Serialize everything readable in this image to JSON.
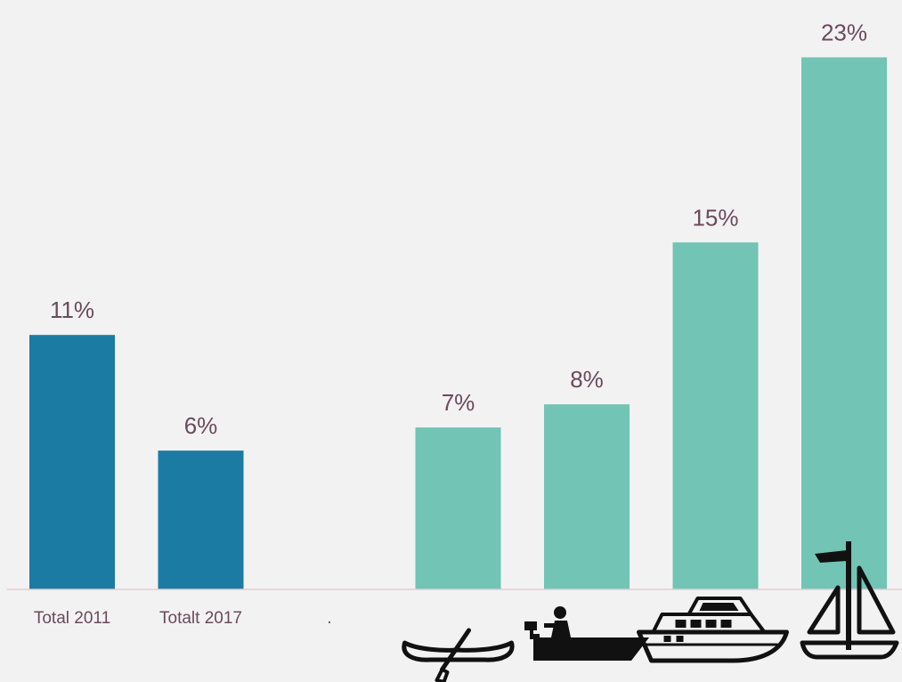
{
  "chart_data": {
    "type": "bar",
    "categories": [
      "Total 2011",
      "Totalt 2017",
      ".",
      "canoe",
      "small motorboat",
      "motor cruiser",
      "sailboat"
    ],
    "category_display": [
      "Total 2011",
      "Totalt 2017",
      ".",
      "",
      "",
      "",
      ""
    ],
    "category_icons": [
      "",
      "",
      "",
      "canoe-icon",
      "small-motorboat-icon",
      "motor-cruiser-icon",
      "sailboat-icon"
    ],
    "values": [
      11,
      6,
      null,
      7,
      8,
      15,
      23
    ],
    "value_labels": [
      "11%",
      "6%",
      "",
      "7%",
      "8%",
      "15%",
      "23%"
    ],
    "bar_colors": [
      "#1c7ba3",
      "#1c7ba3",
      "#1c7ba3",
      "#72c4b4",
      "#72c4b4",
      "#72c4b4",
      "#72c4b4"
    ],
    "title": "",
    "xlabel": "",
    "ylabel": "",
    "ylim": [
      0,
      23.4
    ],
    "grid": false,
    "legend": "none"
  },
  "colors": {
    "background": "#f2f2f2",
    "label_text": "#6b4a5c",
    "axis_line": "#e2cdd4",
    "icon": "#111111"
  }
}
